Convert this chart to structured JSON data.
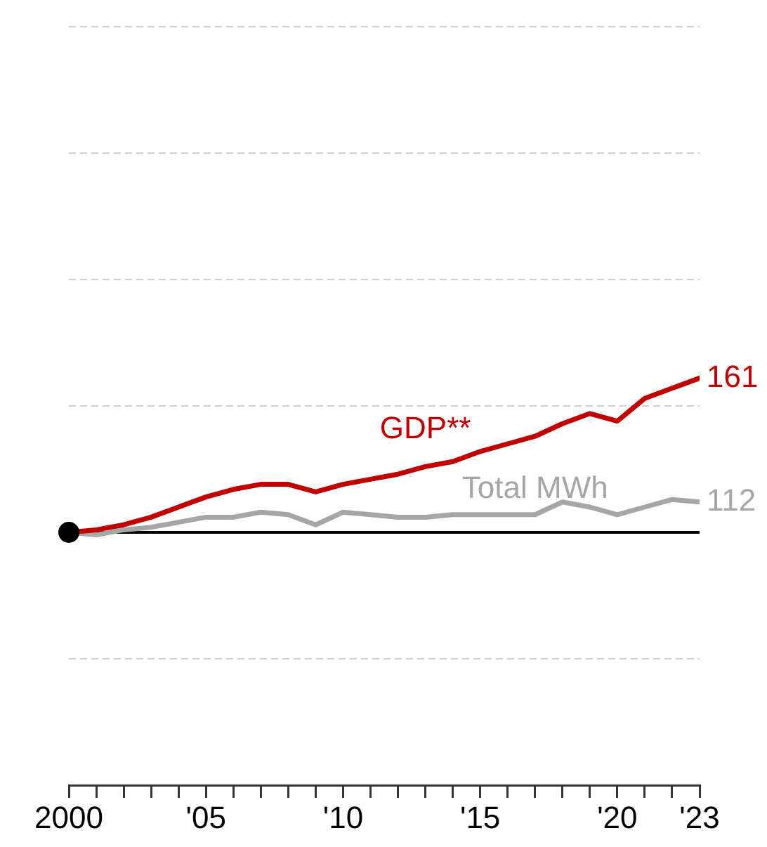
{
  "chart_data": {
    "type": "line",
    "x": [
      2000,
      2001,
      2002,
      2003,
      2004,
      2005,
      2006,
      2007,
      2008,
      2009,
      2010,
      2011,
      2012,
      2013,
      2014,
      2015,
      2016,
      2017,
      2018,
      2019,
      2020,
      2021,
      2022,
      2023
    ],
    "series": [
      {
        "name": "GDP**",
        "color": "#c00000",
        "values": [
          100,
          101,
          103,
          106,
          110,
          114,
          117,
          119,
          119,
          116,
          119,
          121,
          123,
          126,
          128,
          132,
          135,
          138,
          143,
          147,
          144,
          153,
          157,
          161
        ],
        "value_labels": [
          null,
          null,
          null,
          null,
          null,
          null,
          null,
          null,
          null,
          null,
          null,
          null,
          null,
          null,
          null,
          null,
          null,
          null,
          null,
          null,
          null,
          null,
          null,
          "161"
        ]
      },
      {
        "name": "Total MWh",
        "color": "#a6a6a6",
        "values": [
          100,
          99,
          101,
          102,
          104,
          106,
          106,
          108,
          107,
          103,
          108,
          107,
          106,
          106,
          107,
          107,
          107,
          107,
          112,
          110,
          107,
          110,
          113,
          112
        ],
        "value_labels": [
          null,
          null,
          null,
          null,
          null,
          null,
          null,
          null,
          null,
          null,
          null,
          null,
          null,
          null,
          null,
          null,
          null,
          null,
          null,
          null,
          null,
          null,
          null,
          "112"
        ]
      },
      {
        "type": "scatter",
        "marker": "circle",
        "color": "#000000",
        "x": [
          2000
        ],
        "values": [
          100
        ]
      }
    ],
    "xlim": [
      2000,
      2023
    ],
    "xticks": [
      {
        "value": 2000,
        "label": "2000"
      },
      {
        "value": 2001,
        "label": null
      },
      {
        "value": 2002,
        "label": null
      },
      {
        "value": 2003,
        "label": null
      },
      {
        "value": 2004,
        "label": null
      },
      {
        "value": 2005,
        "label": "'05"
      },
      {
        "value": 2006,
        "label": null
      },
      {
        "value": 2007,
        "label": null
      },
      {
        "value": 2008,
        "label": null
      },
      {
        "value": 2009,
        "label": null
      },
      {
        "value": 2010,
        "label": "'10"
      },
      {
        "value": 2011,
        "label": null
      },
      {
        "value": 2012,
        "label": null
      },
      {
        "value": 2013,
        "label": null
      },
      {
        "value": 2014,
        "label": null
      },
      {
        "value": 2015,
        "label": "'15"
      },
      {
        "value": 2016,
        "label": null
      },
      {
        "value": 2017,
        "label": null
      },
      {
        "value": 2018,
        "label": null
      },
      {
        "value": 2019,
        "label": null
      },
      {
        "value": 2020,
        "label": "'20"
      },
      {
        "value": 2021,
        "label": null
      },
      {
        "value": 2022,
        "label": null
      },
      {
        "value": 2023,
        "label": "'23"
      }
    ],
    "ylim": [
      0,
      300
    ],
    "yticks": [
      {
        "value": 0,
        "label": null
      },
      {
        "value": 50,
        "label": null
      },
      {
        "value": 100,
        "label": null
      },
      {
        "value": 150,
        "label": null
      },
      {
        "value": 200,
        "label": null
      },
      {
        "value": 250,
        "label": null
      },
      {
        "value": 300,
        "label": null
      }
    ],
    "tick_labels": "x",
    "grid": "y",
    "ref_lines": [
      {
        "axis": "y",
        "value": 100,
        "color": "#000000"
      }
    ],
    "legend": false,
    "marker": "none",
    "line_style": "solid"
  }
}
